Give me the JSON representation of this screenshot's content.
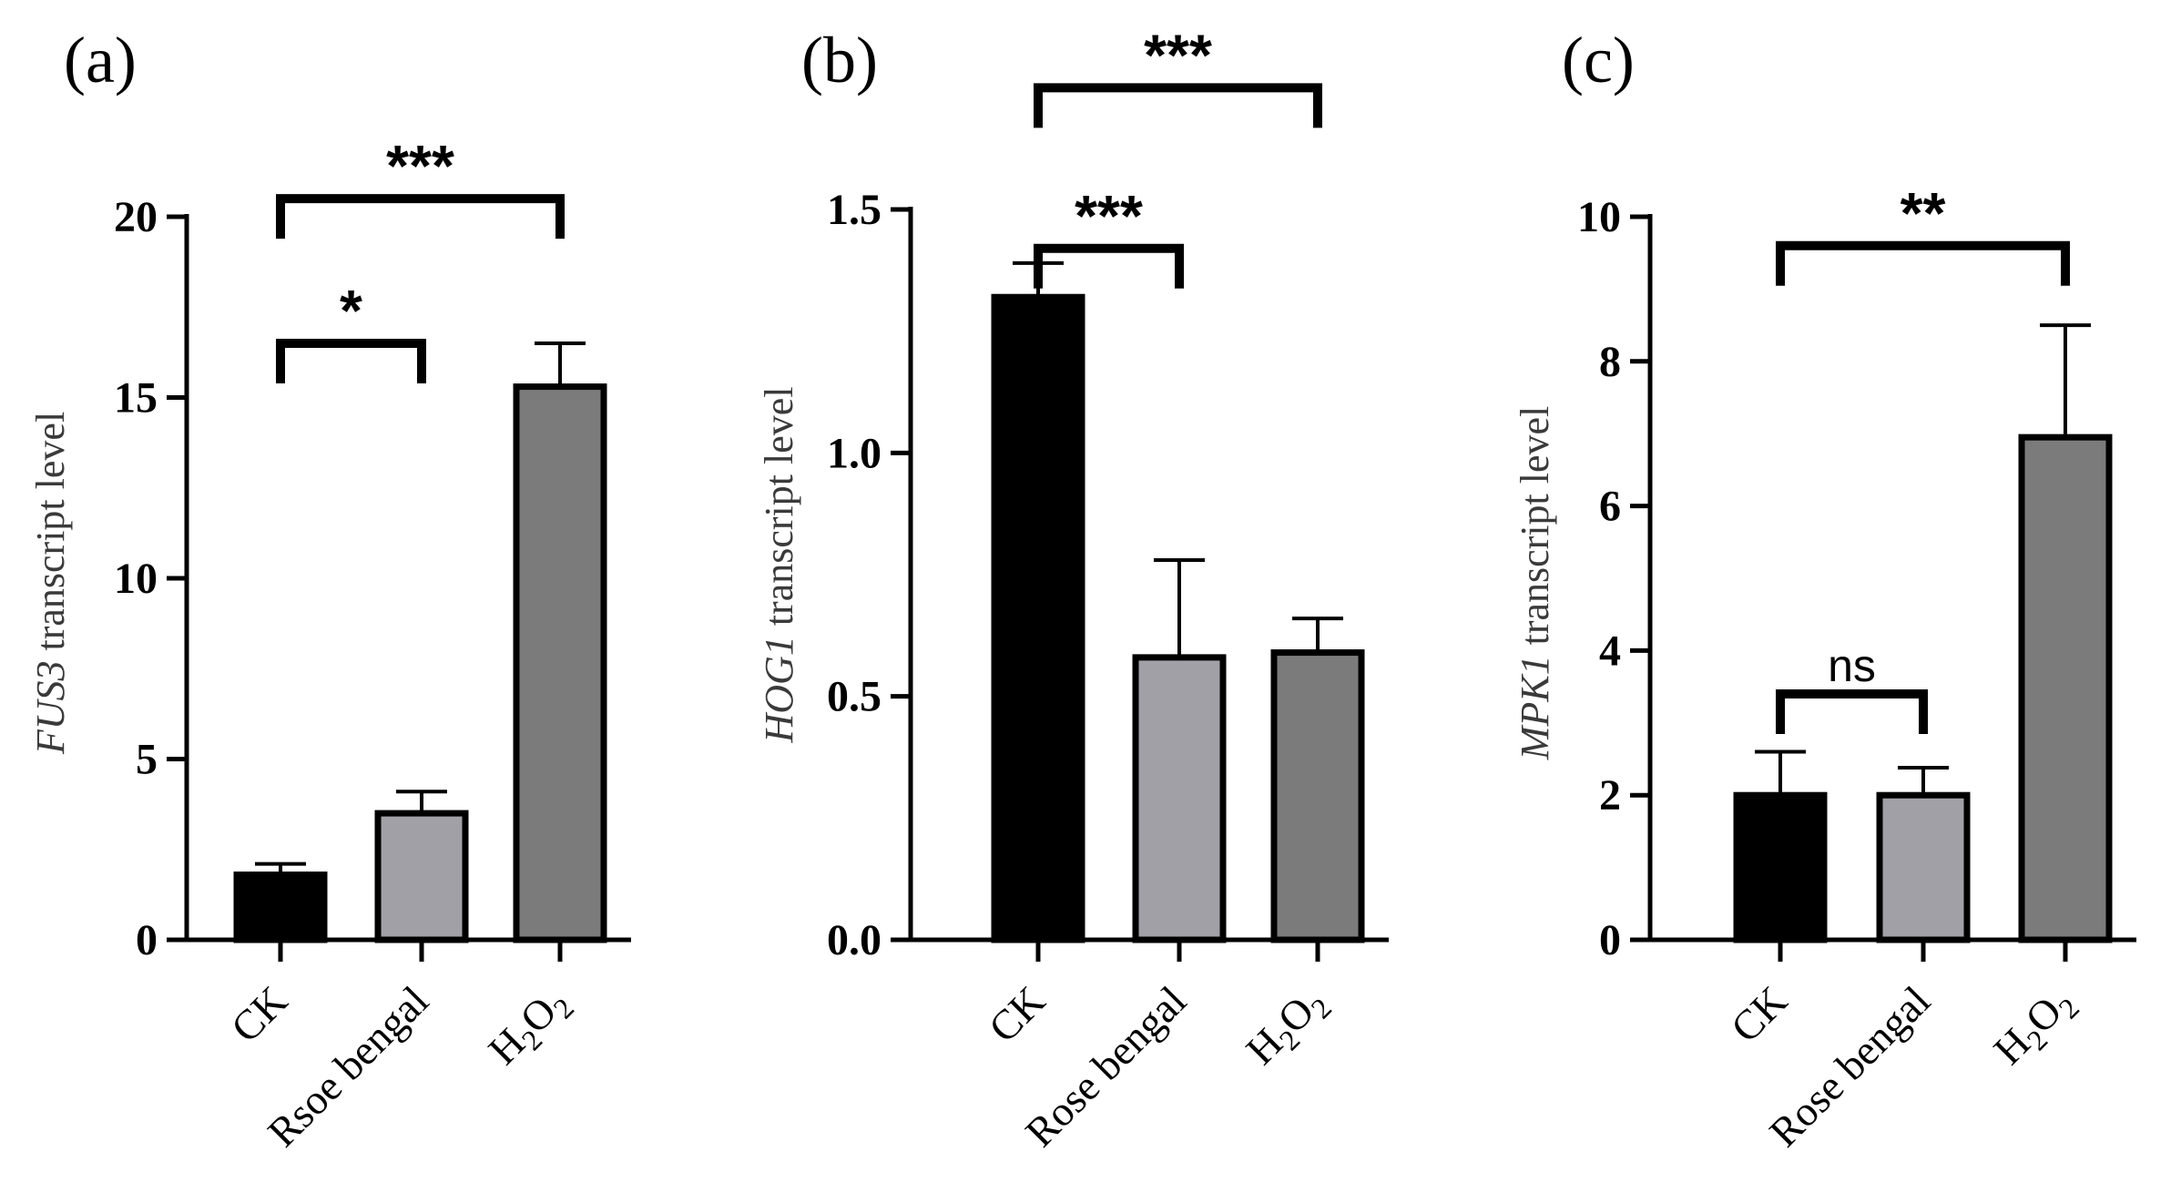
{
  "chart_data": [
    {
      "type": "bar",
      "panel_label": "(a)",
      "ylabel_gene": "FUS3",
      "ylabel_rest": " transcript level",
      "ylim": [
        0,
        20
      ],
      "yticks": [
        0,
        5,
        10,
        15,
        20
      ],
      "ytick_labels": [
        "0",
        "5",
        "10",
        "15",
        "20"
      ],
      "categories": [
        "CK",
        "Rsoe bengal",
        "H2O2"
      ],
      "values": [
        1.8,
        3.5,
        15.3
      ],
      "errors": [
        0.3,
        0.6,
        1.2
      ],
      "colors": [
        "#000000",
        "#a0a0a6",
        "#7b7b7b"
      ],
      "significance": [
        {
          "from": 0,
          "to": 1,
          "label": "*",
          "y": 16.5
        },
        {
          "from": 0,
          "to": 2,
          "label": "***",
          "y": 20.5
        }
      ]
    },
    {
      "type": "bar",
      "panel_label": "(b)",
      "ylabel_gene": "HOG1",
      "ylabel_rest": " transcript level",
      "ylim": [
        0,
        1.5
      ],
      "yticks": [
        0,
        0.5,
        1.0,
        1.5
      ],
      "ytick_labels": [
        "0.0",
        "0.5",
        "1.0",
        "1.5"
      ],
      "categories": [
        "CK",
        "Rose bengal",
        "H2O2"
      ],
      "values": [
        1.32,
        0.58,
        0.59
      ],
      "errors": [
        0.07,
        0.2,
        0.07
      ],
      "colors": [
        "#000000",
        "#a0a0a6",
        "#7b7b7b"
      ],
      "significance": [
        {
          "from": 0,
          "to": 1,
          "label": "***",
          "y": 1.42
        },
        {
          "from": 0,
          "to": 2,
          "label": "***",
          "y": 1.75
        }
      ]
    },
    {
      "type": "bar",
      "panel_label": "(c)",
      "ylabel_gene": "MPK1",
      "ylabel_rest": " transcript level",
      "ylim": [
        0,
        10
      ],
      "yticks": [
        0,
        2,
        4,
        6,
        8,
        10
      ],
      "ytick_labels": [
        "0",
        "2",
        "4",
        "6",
        "8",
        "10"
      ],
      "categories": [
        "CK",
        "Rose bengal",
        "H2O2"
      ],
      "values": [
        2.0,
        2.0,
        6.95
      ],
      "errors": [
        0.6,
        0.38,
        1.55
      ],
      "colors": [
        "#000000",
        "#a0a0a6",
        "#7b7b7b"
      ],
      "significance": [
        {
          "from": 0,
          "to": 1,
          "label": "ns",
          "y": 3.4
        },
        {
          "from": 0,
          "to": 2,
          "label": "**",
          "y": 9.6
        }
      ]
    }
  ]
}
